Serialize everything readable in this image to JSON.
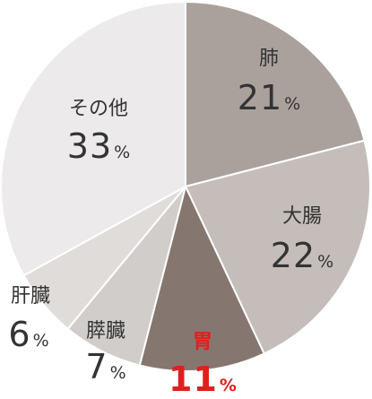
{
  "chart_data": {
    "type": "pie",
    "slices": [
      {
        "label": "肺",
        "value": 21,
        "color": "#aaa19d"
      },
      {
        "label": "大腸",
        "value": 22,
        "color": "#c4bdb9"
      },
      {
        "label": "胃",
        "value": 11,
        "color": "#857770",
        "highlight": true
      },
      {
        "label": "膵臓",
        "value": 7,
        "color": "#d1cdcb"
      },
      {
        "label": "肝臓",
        "value": 6,
        "color": "#e0dcda"
      },
      {
        "label": "その他",
        "value": 33,
        "color": "#eceaea"
      }
    ],
    "unit": "%",
    "highlight_color": "#e0201b"
  }
}
